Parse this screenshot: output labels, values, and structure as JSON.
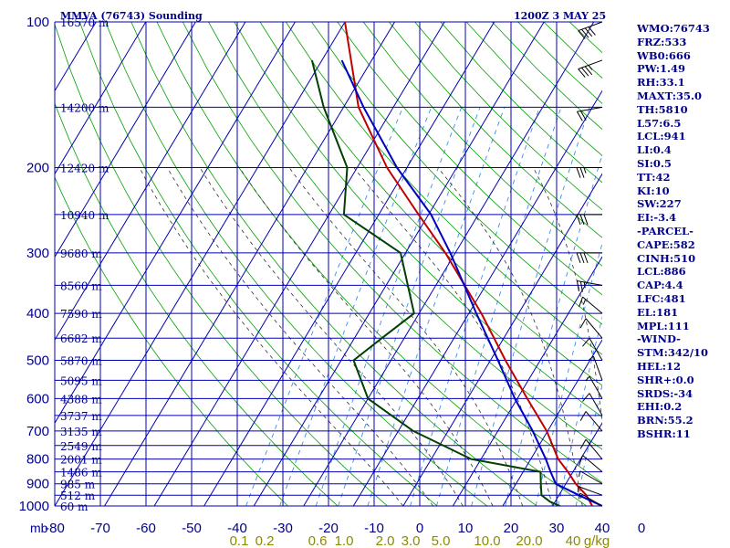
{
  "header": {
    "station_title": "MMVA (76743) Sounding",
    "time_label": "1200Z  3 MAY 25"
  },
  "indices": [
    "WMO:76743",
    "FRZ:533",
    "WB0:666",
    "PW:1.49",
    "RH:33.1",
    "MAXT:35.0",
    "TH:5810",
    "L57:6.5",
    "LCL:941",
    "LI:0.4",
    "SI:0.5",
    "TT:42",
    "KI:10",
    "SW:227",
    "EI:-3.4",
    "-PARCEL-",
    "CAPE:582",
    "CINH:510",
    "LCL:886",
    "CAP:4.4",
    "LFC:481",
    "EL:181",
    "MPL:111",
    "-WIND-",
    "STM:342/10",
    "HEL:12",
    "SHR+:0.0",
    "SRDS:-34",
    "EHI:0.2",
    "BRN:55.2",
    "BSHR:11"
  ],
  "colors": {
    "grid": "#0000b4",
    "dry_adiabat": "#00a000",
    "moist_adiabat": "#303030",
    "mixing_ratio": "#3c8cf0",
    "temperature": "#c00000",
    "dewpoint": "#004000",
    "parcel": "#0000c0",
    "wind": "#000000",
    "axis_text": "#00008b",
    "mixing_ratio_text": "#8b8b00"
  },
  "chart_data": {
    "type": "line",
    "subtype": "skew-T log-P sounding",
    "x_axis_unit_label": "mb",
    "x_ticks": [
      "-80",
      "-70",
      "-60",
      "-50",
      "-40",
      "-30",
      "-20",
      "-10",
      "0",
      "10",
      "20",
      "30",
      "40",
      "0"
    ],
    "pressure_levels": [
      100,
      200,
      300,
      400,
      500,
      600,
      700,
      800,
      900,
      1000
    ],
    "height_labels": [
      {
        "p": 100,
        "label": "16570 m"
      },
      {
        "p": 150,
        "label": "14200 m"
      },
      {
        "p": 200,
        "label": "12420 m"
      },
      {
        "p": 250,
        "label": "10940 m"
      },
      {
        "p": 300,
        "label": "9680 m"
      },
      {
        "p": 350,
        "label": "8560 m"
      },
      {
        "p": 400,
        "label": "7590 m"
      },
      {
        "p": 450,
        "label": "6682 m"
      },
      {
        "p": 500,
        "label": "5870 m"
      },
      {
        "p": 550,
        "label": "5095 m"
      },
      {
        "p": 600,
        "label": "4388 m"
      },
      {
        "p": 650,
        "label": "3737 m"
      },
      {
        "p": 700,
        "label": "3135 m"
      },
      {
        "p": 750,
        "label": "2549 m"
      },
      {
        "p": 800,
        "label": "2001 m"
      },
      {
        "p": 850,
        "label": "1486 m"
      },
      {
        "p": 900,
        "label": "985 m"
      },
      {
        "p": 950,
        "label": "512 m"
      },
      {
        "p": 1000,
        "label": "60 m"
      }
    ],
    "mixing_ratio_labels": [
      "0.1",
      "0.2",
      "0.6",
      "1.0",
      "2.0",
      "3.0",
      "5.0",
      "10.0",
      "20.0",
      "40",
      "g/kg"
    ],
    "mixing_ratios": [
      0.1,
      0.2,
      0.4,
      0.6,
      1.0,
      2.0,
      3.0,
      5.0,
      8.0,
      12.0,
      16.0,
      20.0,
      28.0
    ],
    "series": [
      {
        "key": "temperature",
        "points": [
          {
            "p": 1000,
            "t": 28.0
          },
          {
            "p": 950,
            "t": 25.5
          },
          {
            "p": 900,
            "t": 22.0
          },
          {
            "p": 850,
            "t": 19.0
          },
          {
            "p": 800,
            "t": 15.5
          },
          {
            "p": 700,
            "t": 9.8
          },
          {
            "p": 600,
            "t": 2.0
          },
          {
            "p": 500,
            "t": -7.0
          },
          {
            "p": 400,
            "t": -17.5
          },
          {
            "p": 300,
            "t": -32.0
          },
          {
            "p": 250,
            "t": -42.0
          },
          {
            "p": 200,
            "t": -54.0
          },
          {
            "p": 150,
            "t": -67.0
          },
          {
            "p": 100,
            "t": -80.0
          }
        ]
      },
      {
        "key": "dewpoint",
        "points": [
          {
            "p": 1000,
            "t": 21.5
          },
          {
            "p": 980,
            "t": 19.0
          },
          {
            "p": 950,
            "t": 16.5
          },
          {
            "p": 900,
            "t": 15.0
          },
          {
            "p": 850,
            "t": 13.5
          },
          {
            "p": 800,
            "t": -2.0
          },
          {
            "p": 700,
            "t": -17.0
          },
          {
            "p": 600,
            "t": -30.0
          },
          {
            "p": 500,
            "t": -37.5
          },
          {
            "p": 450,
            "t": -34.5
          },
          {
            "p": 400,
            "t": -31.0
          },
          {
            "p": 300,
            "t": -41.0
          },
          {
            "p": 250,
            "t": -57.0
          },
          {
            "p": 200,
            "t": -62.0
          },
          {
            "p": 150,
            "t": -74.0
          },
          {
            "p": 120,
            "t": -82.0
          }
        ]
      },
      {
        "key": "parcel",
        "points": [
          {
            "p": 1000,
            "t": 30.0
          },
          {
            "p": 950,
            "t": 24.0
          },
          {
            "p": 900,
            "t": 18.0
          },
          {
            "p": 850,
            "t": 15.5
          },
          {
            "p": 800,
            "t": 13.0
          },
          {
            "p": 700,
            "t": 7.0
          },
          {
            "p": 600,
            "t": -0.5
          },
          {
            "p": 500,
            "t": -8.5
          },
          {
            "p": 400,
            "t": -18.5
          },
          {
            "p": 300,
            "t": -31.0
          },
          {
            "p": 250,
            "t": -39.5
          },
          {
            "p": 200,
            "t": -52.0
          },
          {
            "p": 150,
            "t": -66.0
          },
          {
            "p": 120,
            "t": -76.0
          }
        ]
      }
    ],
    "winds": [
      {
        "p": 1000,
        "dir": 300,
        "kt": 8
      },
      {
        "p": 950,
        "dir": 290,
        "kt": 6
      },
      {
        "p": 900,
        "dir": 300,
        "kt": 8
      },
      {
        "p": 850,
        "dir": 310,
        "kt": 12
      },
      {
        "p": 800,
        "dir": 320,
        "kt": 12
      },
      {
        "p": 700,
        "dir": 320,
        "kt": 10
      },
      {
        "p": 650,
        "dir": 330,
        "kt": 10
      },
      {
        "p": 600,
        "dir": 330,
        "kt": 8
      },
      {
        "p": 550,
        "dir": 340,
        "kt": 8
      },
      {
        "p": 500,
        "dir": 330,
        "kt": 10
      },
      {
        "p": 450,
        "dir": 320,
        "kt": 10
      },
      {
        "p": 400,
        "dir": 310,
        "kt": 15
      },
      {
        "p": 350,
        "dir": 280,
        "kt": 25
      },
      {
        "p": 300,
        "dir": 270,
        "kt": 30
      },
      {
        "p": 250,
        "dir": 270,
        "kt": 30
      },
      {
        "p": 200,
        "dir": 270,
        "kt": 25
      },
      {
        "p": 150,
        "dir": 260,
        "kt": 20
      },
      {
        "p": 120,
        "dir": 250,
        "kt": 35
      },
      {
        "p": 100,
        "dir": 250,
        "kt": 40
      }
    ]
  }
}
